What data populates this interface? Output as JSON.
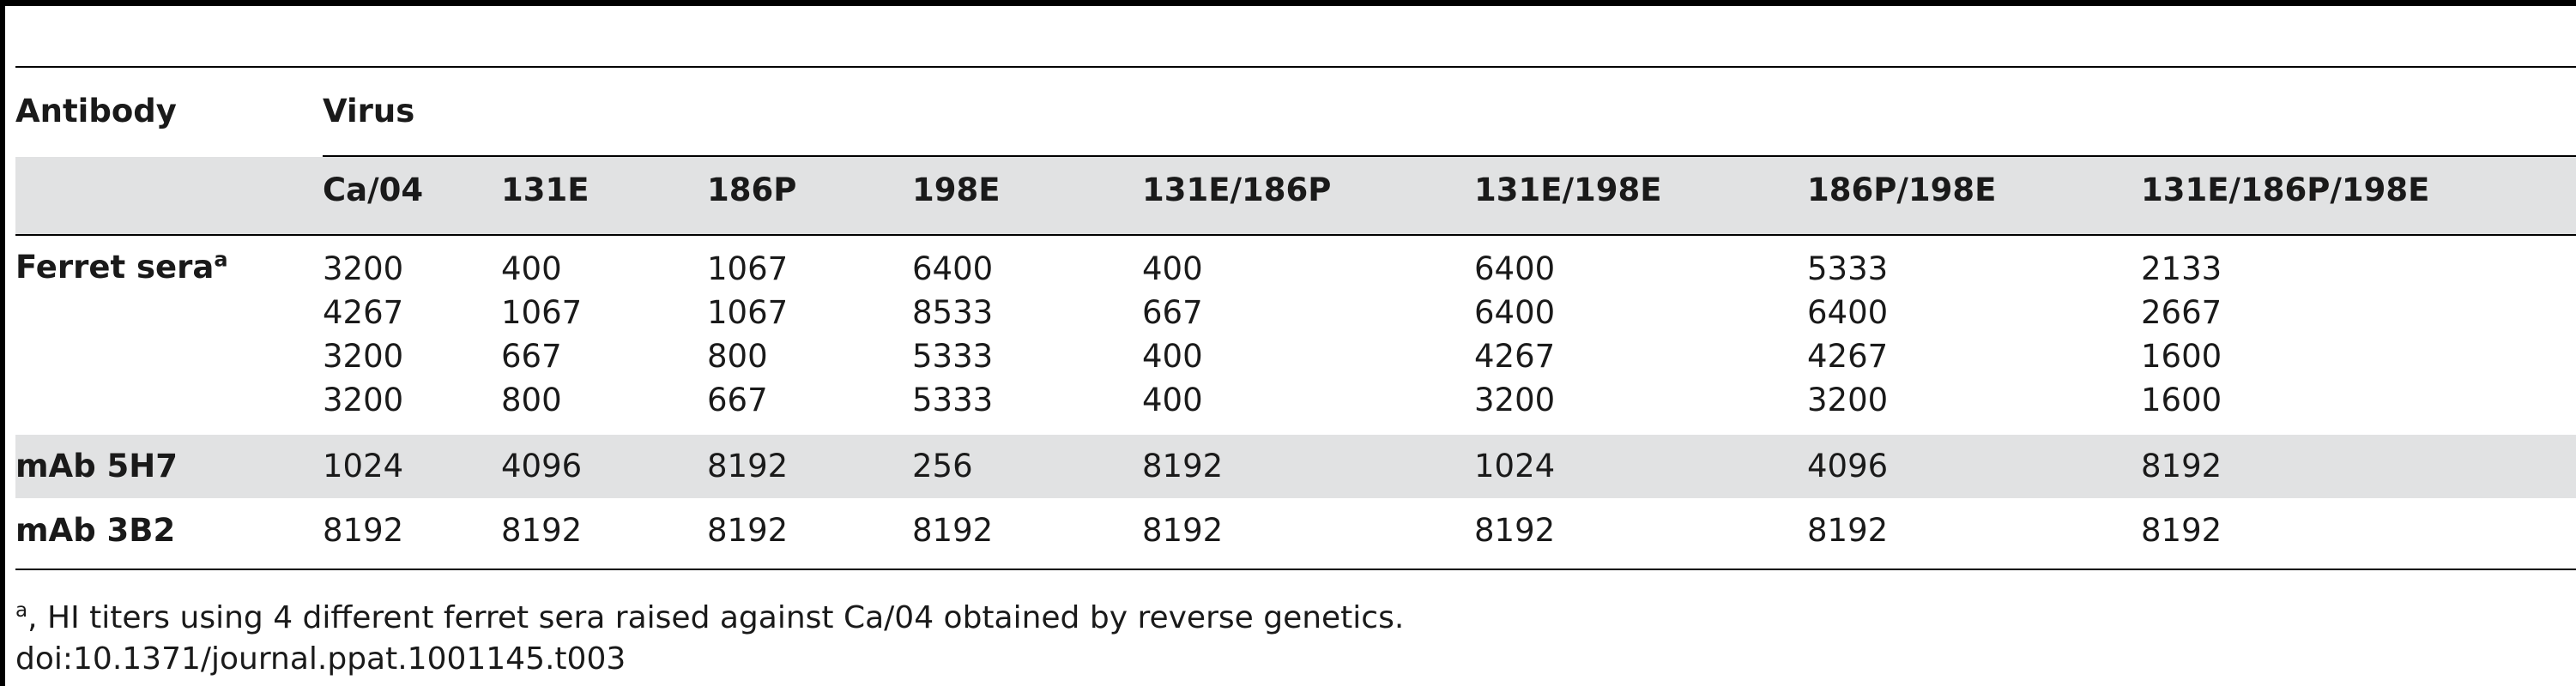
{
  "table": {
    "header_top": {
      "antibody": "Antibody",
      "virus": "Virus"
    },
    "virus_columns": [
      "Ca/04",
      "131E",
      "186P",
      "198E",
      "131E/186P",
      "131E/198E",
      "186P/198E",
      "131E/186P/198E"
    ],
    "rows": [
      {
        "label": "Ferret sera",
        "label_sup": "a",
        "values": [
          [
            "3200",
            "4267",
            "3200",
            "3200"
          ],
          [
            "400",
            "1067",
            "667",
            "800"
          ],
          [
            "1067",
            "1067",
            "800",
            "667"
          ],
          [
            "6400",
            "8533",
            "5333",
            "5333"
          ],
          [
            "400",
            "667",
            "400",
            "400"
          ],
          [
            "6400",
            "6400",
            "4267",
            "3200"
          ],
          [
            "5333",
            "6400",
            "4267",
            "3200"
          ],
          [
            "2133",
            "2667",
            "1600",
            "1600"
          ]
        ]
      },
      {
        "label": "mAb 5H7",
        "values": [
          "1024",
          "4096",
          "8192",
          "256",
          "8192",
          "1024",
          "4096",
          "8192"
        ]
      },
      {
        "label": "mAb 3B2",
        "values": [
          "8192",
          "8192",
          "8192",
          "8192",
          "8192",
          "8192",
          "8192",
          "8192"
        ]
      }
    ]
  },
  "footnotes": {
    "note_a_marker": "a",
    "note_a_text": ", HI titers using 4 different ferret sera raised against Ca/04 obtained by reverse genetics.",
    "doi": "doi:10.1371/journal.ppat.1001145.t003"
  }
}
